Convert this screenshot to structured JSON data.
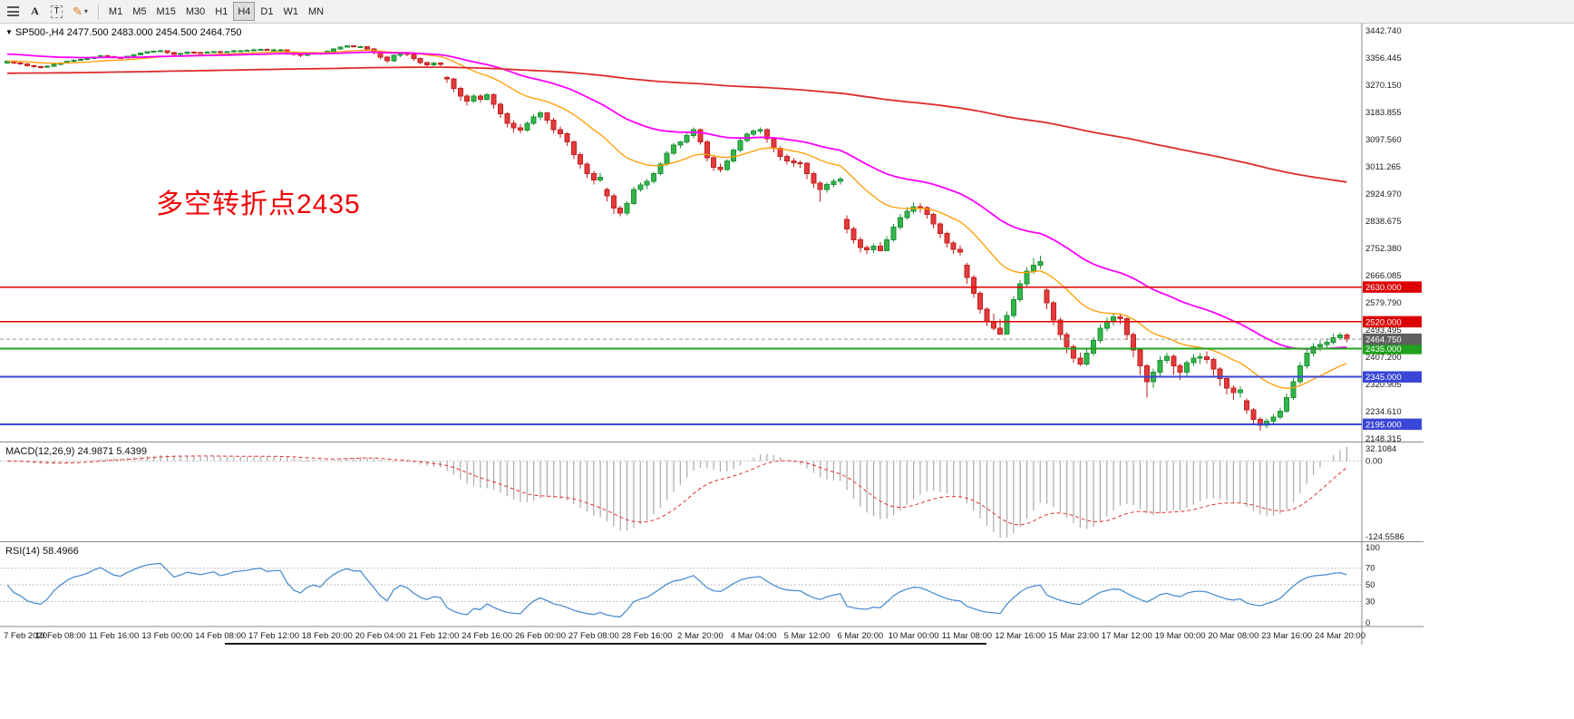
{
  "toolbar": {
    "tools": {
      "font_label": "A",
      "text_label": "T"
    },
    "timeframes": [
      "M1",
      "M5",
      "M15",
      "M30",
      "H1",
      "H4",
      "D1",
      "W1",
      "MN"
    ],
    "active_timeframe": "H4"
  },
  "chart": {
    "title": "SP500-,H4 2477.500 2483.000 2454.500 2464.750",
    "symbol": "SP500-",
    "timeframe": "H4",
    "ohlc_display": {
      "open": "2477.500",
      "high": "2483.000",
      "low": "2454.500",
      "close": "2464.750"
    },
    "annotation": "多空转折点2435",
    "price_axis_labels": [
      3442.74,
      3356.445,
      3270.15,
      3183.855,
      3097.56,
      3011.265,
      2924.97,
      2838.675,
      2752.38,
      2666.085,
      2579.79,
      2493.495,
      2407.2,
      2320.905,
      2234.61,
      2148.315
    ],
    "levels": [
      {
        "price": 2630.0,
        "label": "2630.000",
        "color": "#dd0000",
        "width": 1.5
      },
      {
        "price": 2520.0,
        "label": "2520.000",
        "color": "#dd0000",
        "width": 1.5
      },
      {
        "price": 2435.0,
        "label": "2435.000",
        "color": "#1fa11f",
        "width": 2
      },
      {
        "price": 2345.0,
        "label": "2345.000",
        "color": "#3a46d6",
        "width": 2
      },
      {
        "price": 2195.0,
        "label": "2195.000",
        "color": "#3a46d6",
        "width": 2
      }
    ],
    "current_price": {
      "value": 2464.75,
      "label": "2464.750",
      "tag_color": "#5f5f5f"
    },
    "time_axis_labels": [
      "7 Feb 2020",
      "10 Feb 08:00",
      "11 Feb 16:00",
      "13 Feb 00:00",
      "14 Feb 08:00",
      "17 Feb 12:00",
      "18 Feb 20:00",
      "20 Feb 04:00",
      "21 Feb 12:00",
      "24 Feb 16:00",
      "26 Feb 00:00",
      "27 Feb 08:00",
      "28 Feb 16:00",
      "2 Mar 20:00",
      "4 Mar 04:00",
      "5 Mar 12:00",
      "6 Mar 20:00",
      "10 Mar 00:00",
      "11 Mar 08:00",
      "12 Mar 16:00",
      "15 Mar 23:00",
      "17 Mar 12:00",
      "19 Mar 00:00",
      "20 Mar 08:00",
      "23 Mar 16:00",
      "24 Mar 20:00"
    ]
  },
  "macd": {
    "label": "MACD(12,26,9) 24.9871 5.4399",
    "fast": 12,
    "slow": 26,
    "signal": 9,
    "value": "24.9871",
    "signal_value": "5.4399",
    "axis_labels": [
      "32.1084",
      "0.00",
      "-124.5586"
    ]
  },
  "rsi": {
    "label": "RSI(14) 58.4966",
    "period": 14,
    "value": "58.4966",
    "axis_labels": [
      100,
      70,
      50,
      30,
      0
    ],
    "levels": [
      70,
      50,
      30
    ]
  },
  "chart_data": {
    "type": "candlestick",
    "symbol": "SP500-",
    "timeframe": "H4",
    "colors": {
      "up": "#33b54a",
      "up_border": "#1f9138",
      "down": "#e23b3b",
      "down_border": "#c32020"
    },
    "moving_averages": [
      {
        "name": "fast",
        "period": 20,
        "color": "#ff9c00",
        "width": 1.3,
        "seed": null
      },
      {
        "name": "medium",
        "period": 48,
        "color": "#ff00ff",
        "width": 1.8,
        "seed": 3370
      },
      {
        "name": "slow",
        "period": 320,
        "color": "#dd2c2c",
        "width": 1.8,
        "seed": 3308
      }
    ],
    "last_bar": {
      "open": 2477.5,
      "high": 2483.0,
      "low": 2454.5,
      "close": 2464.75
    },
    "ohlc": [
      [
        3340,
        3350,
        3338,
        3347
      ],
      [
        3347,
        3350,
        3338,
        3341
      ],
      [
        3341,
        3344,
        3335,
        3338
      ],
      [
        3338,
        3340,
        3329,
        3332
      ],
      [
        3332,
        3335,
        3326,
        3329
      ],
      [
        3329,
        3332,
        3324,
        3327
      ],
      [
        3327,
        3333,
        3325,
        3330
      ],
      [
        3330,
        3338,
        3328,
        3336
      ],
      [
        3336,
        3343,
        3334,
        3341
      ],
      [
        3341,
        3348,
        3339,
        3346
      ],
      [
        3346,
        3352,
        3344,
        3350
      ],
      [
        3350,
        3355,
        3347,
        3352
      ],
      [
        3352,
        3358,
        3350,
        3355
      ],
      [
        3355,
        3362,
        3353,
        3360
      ],
      [
        3360,
        3366,
        3357,
        3364
      ],
      [
        3364,
        3366,
        3358,
        3361
      ],
      [
        3361,
        3363,
        3355,
        3358
      ],
      [
        3358,
        3361,
        3354,
        3357
      ],
      [
        3357,
        3364,
        3355,
        3362
      ],
      [
        3362,
        3369,
        3360,
        3367
      ],
      [
        3367,
        3374,
        3365,
        3372
      ],
      [
        3372,
        3378,
        3370,
        3376
      ],
      [
        3376,
        3381,
        3374,
        3378
      ],
      [
        3378,
        3382,
        3375,
        3379
      ],
      [
        3379,
        3381,
        3370,
        3374
      ],
      [
        3374,
        3376,
        3364,
        3368
      ],
      [
        3368,
        3374,
        3365,
        3371
      ],
      [
        3371,
        3378,
        3369,
        3375
      ],
      [
        3375,
        3378,
        3370,
        3374
      ],
      [
        3374,
        3377,
        3370,
        3373
      ],
      [
        3373,
        3378,
        3371,
        3375
      ],
      [
        3375,
        3380,
        3373,
        3377
      ],
      [
        3377,
        3379,
        3371,
        3374
      ],
      [
        3374,
        3379,
        3372,
        3376
      ],
      [
        3376,
        3382,
        3374,
        3379
      ],
      [
        3379,
        3383,
        3377,
        3380
      ],
      [
        3380,
        3384,
        3378,
        3381
      ],
      [
        3381,
        3386,
        3379,
        3383
      ],
      [
        3383,
        3387,
        3381,
        3384
      ],
      [
        3384,
        3386,
        3379,
        3382
      ],
      [
        3382,
        3386,
        3380,
        3383
      ],
      [
        3383,
        3385,
        3380,
        3383
      ],
      [
        3383,
        3384,
        3371,
        3375
      ],
      [
        3375,
        3377,
        3363,
        3368
      ],
      [
        3368,
        3371,
        3360,
        3365
      ],
      [
        3365,
        3373,
        3362,
        3370
      ],
      [
        3370,
        3376,
        3367,
        3372
      ],
      [
        3372,
        3375,
        3366,
        3370
      ],
      [
        3370,
        3381,
        3368,
        3378
      ],
      [
        3378,
        3388,
        3376,
        3385
      ],
      [
        3385,
        3394,
        3383,
        3391
      ],
      [
        3391,
        3397,
        3389,
        3395
      ],
      [
        3395,
        3397,
        3390,
        3393
      ],
      [
        3393,
        3396,
        3389,
        3393
      ],
      [
        3393,
        3394,
        3379,
        3385
      ],
      [
        3385,
        3388,
        3368,
        3375
      ],
      [
        3375,
        3378,
        3352,
        3360
      ],
      [
        3360,
        3363,
        3341,
        3348
      ],
      [
        3348,
        3368,
        3344,
        3365
      ],
      [
        3365,
        3377,
        3360,
        3373
      ],
      [
        3373,
        3375,
        3362,
        3368
      ],
      [
        3368,
        3370,
        3348,
        3355
      ],
      [
        3355,
        3358,
        3336,
        3342
      ],
      [
        3342,
        3345,
        3328,
        3335
      ],
      [
        3335,
        3344,
        3330,
        3340
      ],
      [
        3340,
        3343,
        3331,
        3337
      ],
      [
        3295,
        3299,
        3278,
        3290
      ],
      [
        3290,
        3293,
        3249,
        3260
      ],
      [
        3260,
        3266,
        3222,
        3235
      ],
      [
        3235,
        3242,
        3206,
        3220
      ],
      [
        3220,
        3241,
        3214,
        3235
      ],
      [
        3235,
        3242,
        3216,
        3225
      ],
      [
        3225,
        3246,
        3221,
        3240
      ],
      [
        3240,
        3244,
        3196,
        3210
      ],
      [
        3210,
        3215,
        3167,
        3180
      ],
      [
        3180,
        3186,
        3136,
        3150
      ],
      [
        3150,
        3160,
        3121,
        3135
      ],
      [
        3135,
        3146,
        3118,
        3128
      ],
      [
        3128,
        3155,
        3124,
        3150
      ],
      [
        3150,
        3178,
        3144,
        3170
      ],
      [
        3170,
        3188,
        3160,
        3182
      ],
      [
        3182,
        3186,
        3148,
        3160
      ],
      [
        3160,
        3166,
        3118,
        3130
      ],
      [
        3130,
        3139,
        3104,
        3116
      ],
      [
        3116,
        3120,
        3078,
        3090
      ],
      [
        3090,
        3096,
        3036,
        3050
      ],
      [
        3050,
        3058,
        3006,
        3020
      ],
      [
        3020,
        3026,
        2976,
        2990
      ],
      [
        2990,
        2998,
        2955,
        2970
      ],
      [
        2970,
        2992,
        2962,
        2978
      ],
      [
        2940,
        2945,
        2902,
        2920
      ],
      [
        2920,
        2926,
        2862,
        2880
      ],
      [
        2880,
        2888,
        2855,
        2865
      ],
      [
        2865,
        2902,
        2858,
        2895
      ],
      [
        2895,
        2948,
        2890,
        2940
      ],
      [
        2940,
        2962,
        2932,
        2954
      ],
      [
        2954,
        2972,
        2941,
        2965
      ],
      [
        2965,
        2996,
        2958,
        2990
      ],
      [
        2990,
        3026,
        2984,
        3020
      ],
      [
        3020,
        3061,
        3014,
        3055
      ],
      [
        3055,
        3088,
        3049,
        3080
      ],
      [
        3080,
        3094,
        3070,
        3090
      ],
      [
        3090,
        3118,
        3084,
        3110
      ],
      [
        3110,
        3136,
        3102,
        3130
      ],
      [
        3130,
        3134,
        3082,
        3090
      ],
      [
        3090,
        3096,
        3028,
        3040
      ],
      [
        3040,
        3048,
        2998,
        3010
      ],
      [
        3010,
        3022,
        2994,
        3003
      ],
      [
        3003,
        3036,
        2999,
        3030
      ],
      [
        3030,
        3071,
        3024,
        3065
      ],
      [
        3065,
        3100,
        3058,
        3095
      ],
      [
        3095,
        3121,
        3089,
        3115
      ],
      [
        3115,
        3131,
        3108,
        3125
      ],
      [
        3125,
        3137,
        3117,
        3130
      ],
      [
        3130,
        3133,
        3088,
        3100
      ],
      [
        3100,
        3106,
        3058,
        3070
      ],
      [
        3070,
        3076,
        3031,
        3045
      ],
      [
        3045,
        3052,
        3018,
        3030
      ],
      [
        3030,
        3038,
        3012,
        3025
      ],
      [
        3025,
        3032,
        3009,
        3023
      ],
      [
        3023,
        3026,
        2972,
        2990
      ],
      [
        2990,
        2995,
        2944,
        2960
      ],
      [
        2960,
        2966,
        2901,
        2940
      ],
      [
        2940,
        2962,
        2930,
        2955
      ],
      [
        2955,
        2974,
        2947,
        2965
      ],
      [
        2965,
        2980,
        2956,
        2972
      ],
      [
        2845,
        2858,
        2800,
        2815
      ],
      [
        2815,
        2822,
        2768,
        2780
      ],
      [
        2780,
        2788,
        2740,
        2755
      ],
      [
        2755,
        2762,
        2734,
        2748
      ],
      [
        2748,
        2768,
        2738,
        2760
      ],
      [
        2760,
        2772,
        2742,
        2746
      ],
      [
        2746,
        2792,
        2744,
        2780
      ],
      [
        2780,
        2830,
        2774,
        2820
      ],
      [
        2820,
        2862,
        2812,
        2850
      ],
      [
        2850,
        2884,
        2843,
        2870
      ],
      [
        2870,
        2898,
        2862,
        2885
      ],
      [
        2885,
        2896,
        2866,
        2882
      ],
      [
        2882,
        2886,
        2848,
        2860
      ],
      [
        2860,
        2866,
        2816,
        2830
      ],
      [
        2830,
        2836,
        2786,
        2800
      ],
      [
        2800,
        2806,
        2756,
        2770
      ],
      [
        2770,
        2776,
        2736,
        2750
      ],
      [
        2750,
        2762,
        2730,
        2741
      ],
      [
        2700,
        2706,
        2640,
        2660
      ],
      [
        2660,
        2668,
        2596,
        2610
      ],
      [
        2610,
        2618,
        2546,
        2560
      ],
      [
        2560,
        2566,
        2506,
        2520
      ],
      [
        2520,
        2546,
        2492,
        2500
      ],
      [
        2500,
        2528,
        2478,
        2481
      ],
      [
        2481,
        2552,
        2479,
        2540
      ],
      [
        2540,
        2602,
        2532,
        2590
      ],
      [
        2590,
        2652,
        2582,
        2640
      ],
      [
        2640,
        2692,
        2632,
        2680
      ],
      [
        2680,
        2722,
        2672,
        2700
      ],
      [
        2700,
        2730,
        2688,
        2711
      ],
      [
        2620,
        2626,
        2560,
        2580
      ],
      [
        2580,
        2586,
        2508,
        2525
      ],
      [
        2525,
        2532,
        2462,
        2480
      ],
      [
        2480,
        2486,
        2420,
        2440
      ],
      [
        2440,
        2448,
        2390,
        2405
      ],
      [
        2405,
        2422,
        2380,
        2386
      ],
      [
        2386,
        2436,
        2380,
        2420
      ],
      [
        2420,
        2472,
        2412,
        2460
      ],
      [
        2460,
        2512,
        2452,
        2500
      ],
      [
        2500,
        2534,
        2490,
        2520
      ],
      [
        2520,
        2548,
        2508,
        2535
      ],
      [
        2535,
        2546,
        2512,
        2529
      ],
      [
        2529,
        2534,
        2462,
        2480
      ],
      [
        2480,
        2486,
        2408,
        2430
      ],
      [
        2430,
        2438,
        2352,
        2380
      ],
      [
        2380,
        2386,
        2280,
        2330
      ],
      [
        2330,
        2372,
        2310,
        2360
      ],
      [
        2360,
        2412,
        2346,
        2398
      ],
      [
        2398,
        2422,
        2388,
        2410
      ],
      [
        2410,
        2416,
        2352,
        2380
      ],
      [
        2380,
        2388,
        2336,
        2360
      ],
      [
        2360,
        2398,
        2348,
        2390
      ],
      [
        2390,
        2418,
        2380,
        2405
      ],
      [
        2405,
        2420,
        2386,
        2409
      ],
      [
        2409,
        2426,
        2388,
        2400
      ],
      [
        2400,
        2406,
        2348,
        2370
      ],
      [
        2370,
        2376,
        2316,
        2340
      ],
      [
        2340,
        2346,
        2290,
        2310
      ],
      [
        2310,
        2318,
        2272,
        2295
      ],
      [
        2295,
        2316,
        2280,
        2304
      ],
      [
        2270,
        2277,
        2228,
        2240
      ],
      [
        2240,
        2247,
        2196,
        2210
      ],
      [
        2210,
        2217,
        2174,
        2192
      ],
      [
        2192,
        2214,
        2182,
        2205
      ],
      [
        2205,
        2228,
        2196,
        2218
      ],
      [
        2218,
        2248,
        2210,
        2237
      ],
      [
        2237,
        2292,
        2230,
        2280
      ],
      [
        2280,
        2342,
        2272,
        2330
      ],
      [
        2330,
        2392,
        2322,
        2380
      ],
      [
        2380,
        2432,
        2372,
        2420
      ],
      [
        2420,
        2452,
        2410,
        2440
      ],
      [
        2440,
        2462,
        2426,
        2447
      ],
      [
        2447,
        2468,
        2436,
        2455
      ],
      [
        2455,
        2482,
        2448,
        2470
      ],
      [
        2470,
        2486,
        2462,
        2478
      ],
      [
        2477.5,
        2483,
        2454.5,
        2464.75
      ]
    ]
  }
}
